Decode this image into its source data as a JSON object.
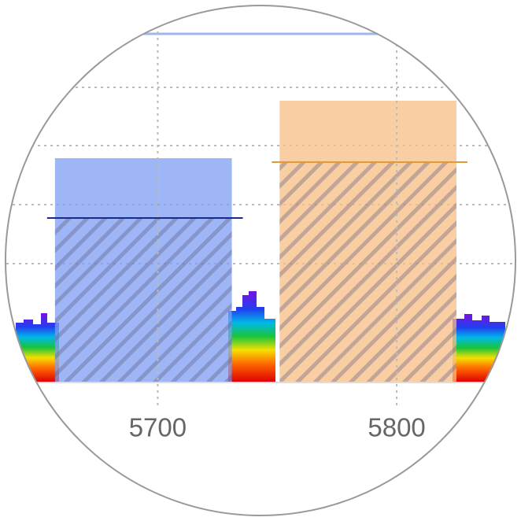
{
  "chart_data": {
    "type": "spectrum",
    "xlim": [
      5634,
      5852
    ],
    "xticks": [
      5700,
      5800
    ],
    "grid": true,
    "channels": [
      {
        "color": "#7e9ef2",
        "x": [
          5657,
          5731
        ]
      },
      {
        "color": "#f8be84",
        "x": [
          5751,
          5825
        ]
      }
    ]
  }
}
